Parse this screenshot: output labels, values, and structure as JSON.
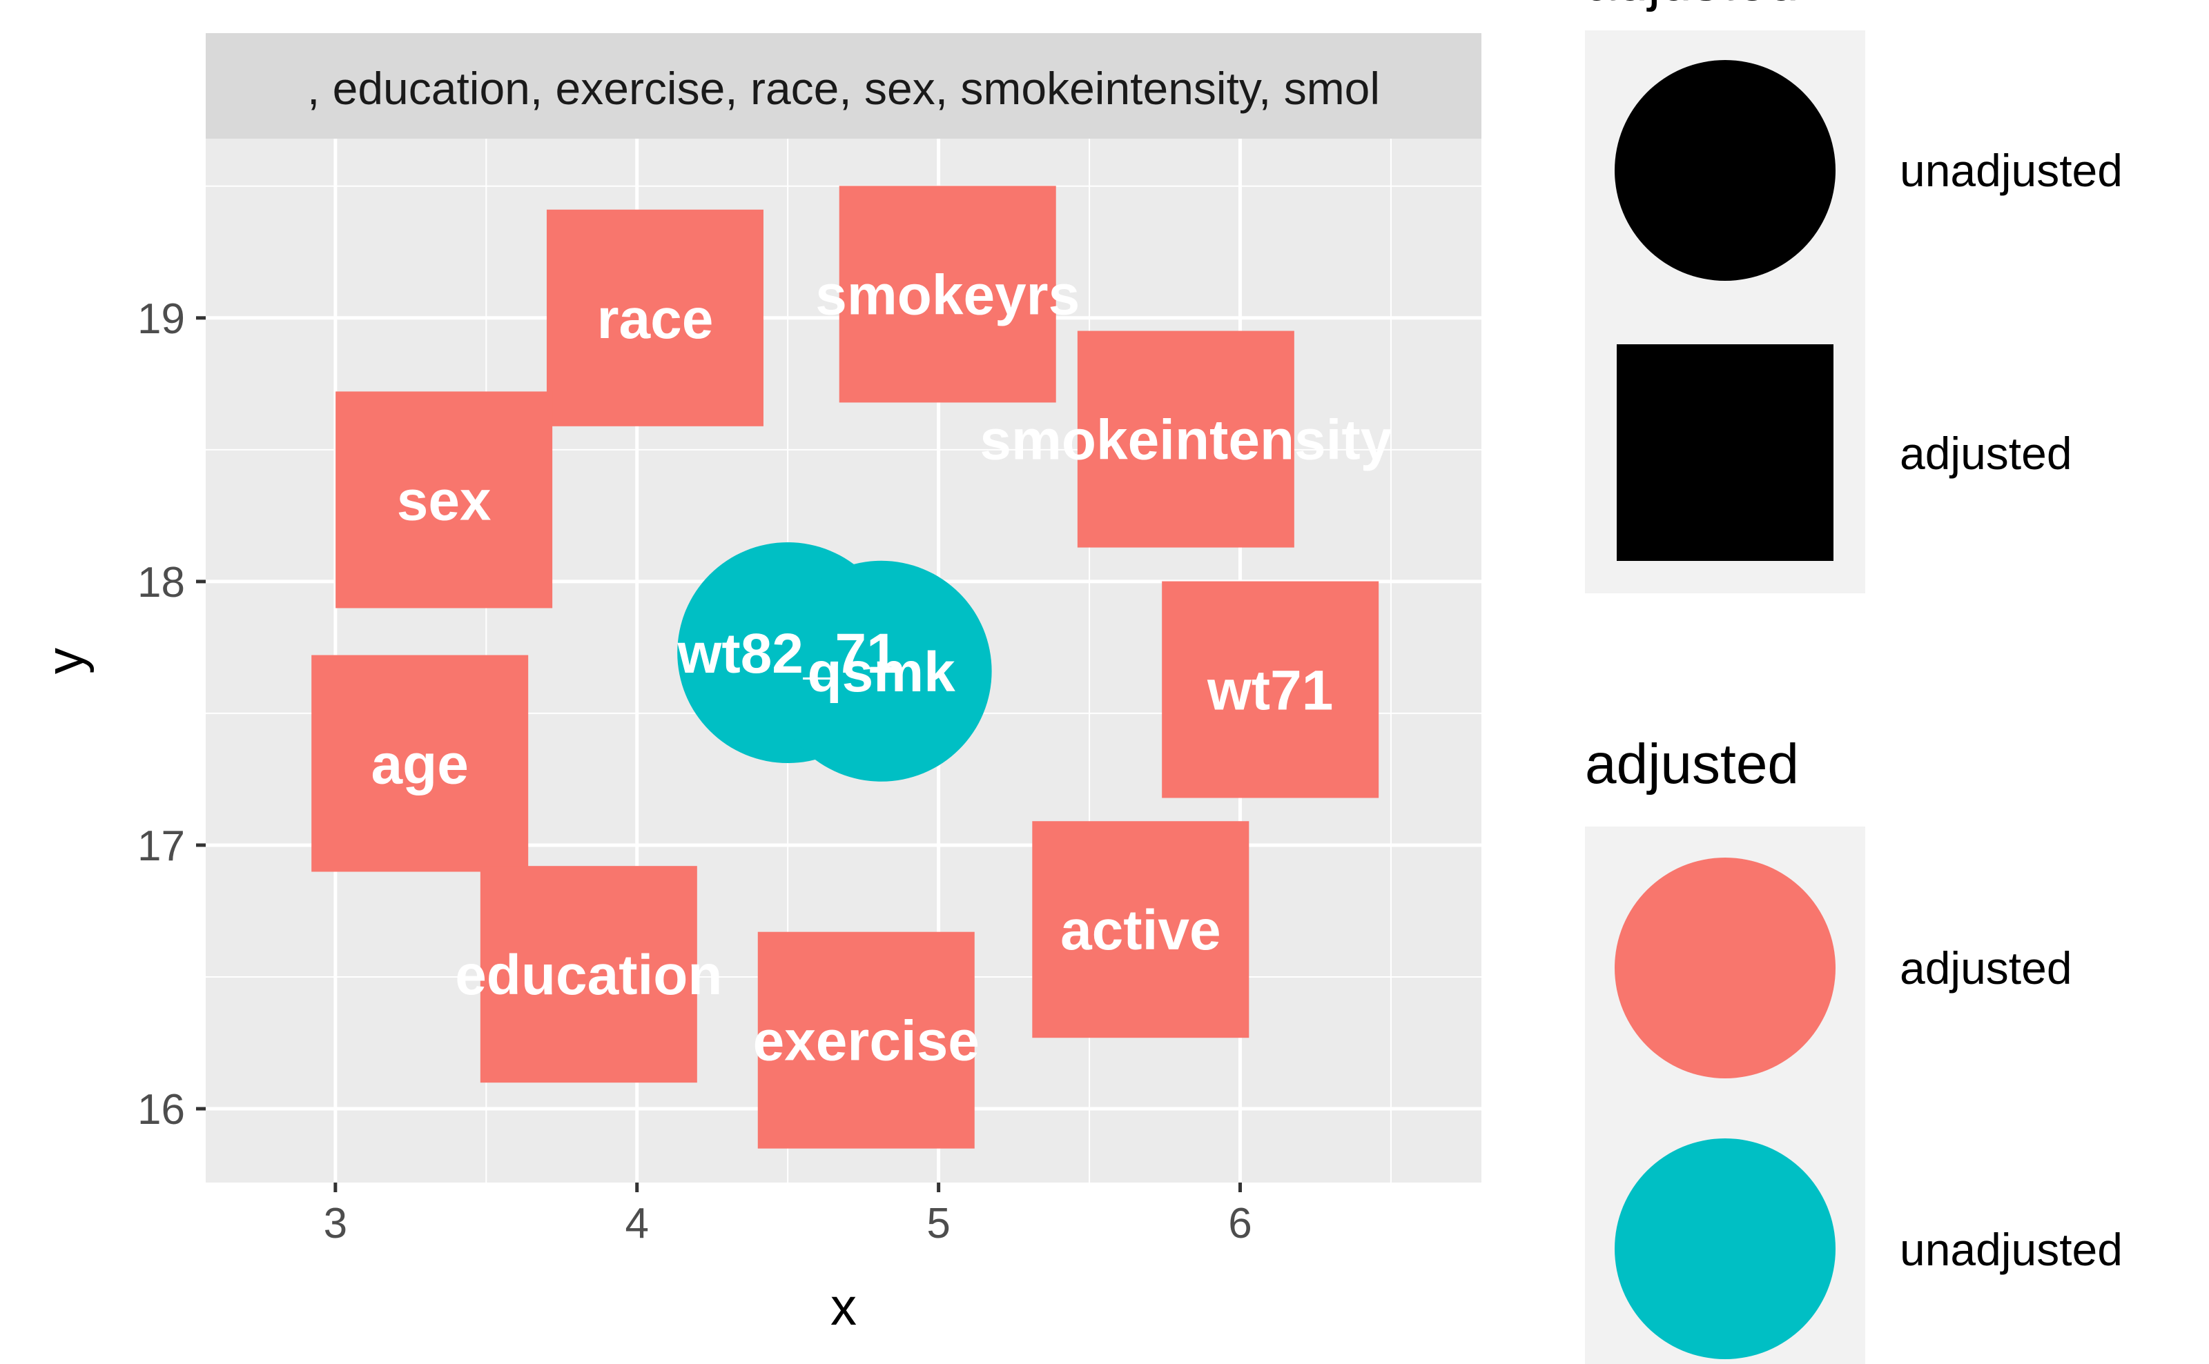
{
  "chart_data": {
    "type": "scatter",
    "title": "",
    "xlabel": "x",
    "ylabel": "y",
    "xlim": [
      2.57,
      6.8
    ],
    "ylim": [
      15.72,
      19.68
    ],
    "x_ticks": [
      3,
      4,
      5,
      6
    ],
    "y_ticks": [
      16,
      17,
      18,
      19
    ],
    "x_tick_labels": [
      "3",
      "4",
      "5",
      "6"
    ],
    "y_tick_labels": [
      "16",
      "17",
      "18",
      "19"
    ],
    "grid": true,
    "facet_strip": ", education, exercise, race, sex, smokeintensity, smol",
    "nodes": [
      {
        "label": "race",
        "x": 4.06,
        "y": 19.0,
        "shape": "adjusted",
        "adjusted": "adjusted"
      },
      {
        "label": "smokeyrs",
        "x": 5.03,
        "y": 19.09,
        "shape": "adjusted",
        "adjusted": "adjusted"
      },
      {
        "label": "sex",
        "x": 3.36,
        "y": 18.31,
        "shape": "adjusted",
        "adjusted": "adjusted"
      },
      {
        "label": "smokeintensity",
        "x": 5.82,
        "y": 18.54,
        "shape": "adjusted",
        "adjusted": "adjusted"
      },
      {
        "label": "wt82_71",
        "x": 4.5,
        "y": 17.73,
        "shape": "unadjusted",
        "adjusted": "unadjusted"
      },
      {
        "label": "qsmk",
        "x": 4.81,
        "y": 17.66,
        "shape": "unadjusted",
        "adjusted": "unadjusted"
      },
      {
        "label": "wt71",
        "x": 6.1,
        "y": 17.59,
        "shape": "adjusted",
        "adjusted": "adjusted"
      },
      {
        "label": "age",
        "x": 3.28,
        "y": 17.31,
        "shape": "adjusted",
        "adjusted": "adjusted"
      },
      {
        "label": "education",
        "x": 3.84,
        "y": 16.51,
        "shape": "adjusted",
        "adjusted": "adjusted"
      },
      {
        "label": "exercise",
        "x": 4.76,
        "y": 16.26,
        "shape": "adjusted",
        "adjusted": "adjusted"
      },
      {
        "label": "active",
        "x": 5.67,
        "y": 16.68,
        "shape": "adjusted",
        "adjusted": "adjusted"
      }
    ],
    "legends": [
      {
        "title": "adjusted",
        "kind": "shape",
        "entries": [
          {
            "label": "unadjusted",
            "shape": "circle",
            "color": "#000000"
          },
          {
            "label": "adjusted",
            "shape": "square",
            "color": "#000000"
          }
        ]
      },
      {
        "title": "adjusted",
        "kind": "color",
        "entries": [
          {
            "label": "adjusted",
            "shape": "circle",
            "color": "#F8766D"
          },
          {
            "label": "unadjusted",
            "shape": "circle",
            "color": "#00BFC4"
          }
        ]
      }
    ],
    "colors": {
      "adjusted": "#F8766D",
      "unadjusted": "#00BFC4",
      "panel": "#EBEBEB",
      "strip": "#D9D9D9",
      "grid": "#FFFFFF",
      "legend_key": "#F2F2F2"
    }
  }
}
